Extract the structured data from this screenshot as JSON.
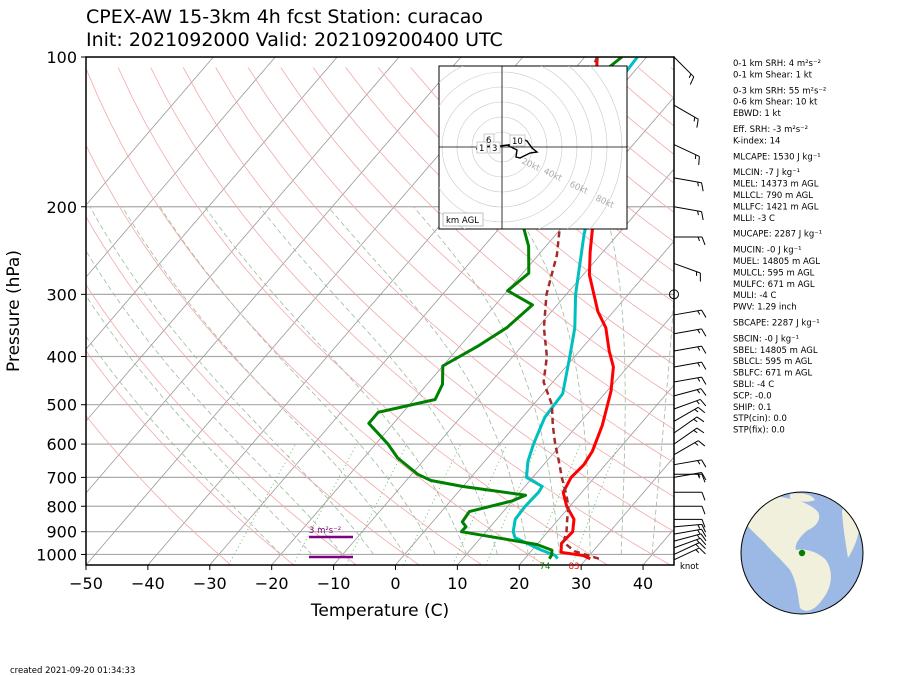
{
  "header": {
    "title_line1": "CPEX-AW 15-3km  4h fcst  Station: curacao",
    "title_line2": "Init: 2021092000  Valid: 202109200400 UTC"
  },
  "footer": {
    "created": "created 2021-09-20 01:34:33"
  },
  "chart_data": {
    "type": "skewt",
    "xlabel": "Temperature (C)",
    "ylabel": "Pressure (hPa)",
    "xlim": [
      -50,
      45
    ],
    "ylim": [
      1050,
      100
    ],
    "y_scale": "log",
    "x_ticks": [
      -50,
      -40,
      -30,
      -20,
      -10,
      0,
      10,
      20,
      30,
      40
    ],
    "y_ticks": [
      1000,
      900,
      800,
      700,
      600,
      500,
      400,
      300,
      200,
      100
    ],
    "series": [
      {
        "color": "#ff0000",
        "points": [
          [
            30.6,
            1020
          ],
          [
            29,
            1005
          ],
          [
            25,
            990
          ],
          [
            23.8,
            950
          ],
          [
            24,
            900
          ],
          [
            22.5,
            850
          ],
          [
            19.5,
            800
          ],
          [
            17,
            750
          ],
          [
            16.2,
            700
          ],
          [
            16.5,
            660
          ],
          [
            16,
            620
          ],
          [
            14,
            550
          ],
          [
            10.7,
            470
          ],
          [
            7.7,
            420
          ],
          [
            4.8,
            390
          ],
          [
            1,
            350
          ],
          [
            -2.5,
            325
          ],
          [
            -9,
            274
          ],
          [
            -12,
            247
          ],
          [
            -16.3,
            210
          ],
          [
            -20,
            182
          ],
          [
            -24.3,
            158
          ],
          [
            -29,
            135
          ],
          [
            -34,
            115
          ],
          [
            -38,
            100
          ]
        ]
      },
      {
        "color": "#00bfbf",
        "points": [
          [
            25.3,
            1020
          ],
          [
            24.5,
            1005
          ],
          [
            21.5,
            980
          ],
          [
            15.5,
            925
          ],
          [
            14.4,
            900
          ],
          [
            13,
            850
          ],
          [
            12.8,
            800
          ],
          [
            13,
            750
          ],
          [
            12.8,
            730
          ],
          [
            9,
            700
          ],
          [
            7,
            650
          ],
          [
            5.5,
            600
          ],
          [
            3.6,
            530
          ],
          [
            3.2,
            475
          ],
          [
            -0.8,
            400
          ],
          [
            -4,
            350
          ],
          [
            -8.5,
            300
          ],
          [
            -15.5,
            227
          ],
          [
            -20.3,
            182
          ],
          [
            -25,
            157
          ],
          [
            -29,
            135
          ],
          [
            -31,
            116
          ],
          [
            -31.5,
            100
          ]
        ]
      },
      {
        "color": "#008000",
        "points": [
          [
            24,
            1020
          ],
          [
            23.8,
            1000
          ],
          [
            23.2,
            980
          ],
          [
            20,
            955
          ],
          [
            6,
            900
          ],
          [
            6.1,
            880
          ],
          [
            4.8,
            860
          ],
          [
            4.5,
            820
          ],
          [
            10,
            780
          ],
          [
            11.3,
            760
          ],
          [
            0,
            730
          ],
          [
            -6,
            710
          ],
          [
            -9,
            690
          ],
          [
            -14.5,
            640
          ],
          [
            -18,
            600
          ],
          [
            -24,
            545
          ],
          [
            -24,
            518
          ],
          [
            -16.6,
            488
          ],
          [
            -17.5,
            455
          ],
          [
            -20,
            418
          ],
          [
            -17,
            380
          ],
          [
            -15,
            350
          ],
          [
            -14,
            315
          ],
          [
            -20,
            295
          ],
          [
            -19,
            272
          ],
          [
            -22.8,
            240
          ],
          [
            -30,
            200
          ],
          [
            -36,
            170
          ],
          [
            -34.6,
            155
          ],
          [
            -37.6,
            130
          ],
          [
            -34,
            100
          ]
        ]
      },
      {
        "color": "#a52a2a",
        "dash": "6,4",
        "points": [
          [
            32,
            1020
          ],
          [
            27,
            985
          ],
          [
            24,
            945
          ],
          [
            23,
            900
          ],
          [
            21.4,
            850
          ],
          [
            19.8,
            800
          ],
          [
            17.4,
            750
          ],
          [
            14.7,
            700
          ],
          [
            12,
            650
          ],
          [
            9,
            600
          ],
          [
            6,
            550
          ],
          [
            3,
            500
          ],
          [
            -1.5,
            450
          ],
          [
            -4.5,
            400
          ],
          [
            -9,
            350
          ],
          [
            -13.2,
            300
          ],
          [
            -17,
            250
          ],
          [
            -21.6,
            210
          ],
          [
            -26,
            180
          ],
          [
            -30.4,
            150
          ],
          [
            -34,
            128
          ],
          [
            -36.5,
            110
          ],
          [
            -38,
            100
          ]
        ]
      }
    ],
    "surface_labels": {
      "dewpoint": "74",
      "temperature": "83",
      "wind_unit": "knot"
    },
    "srh_layers": {
      "upper_label": "3 m²s⁻²"
    },
    "barbs": [
      {
        "p": 100,
        "spd": 15,
        "dir": 135
      },
      {
        "p": 125,
        "spd": 15,
        "dir": 120
      },
      {
        "p": 150,
        "spd": 15,
        "dir": 115
      },
      {
        "p": 175,
        "spd": 15,
        "dir": 100
      },
      {
        "p": 200,
        "spd": 15,
        "dir": 100
      },
      {
        "p": 230,
        "spd": 15,
        "dir": 90
      },
      {
        "p": 260,
        "spd": 15,
        "dir": 110
      },
      {
        "p": 300,
        "spd": 0,
        "dir": 0
      },
      {
        "p": 330,
        "spd": 15,
        "dir": 80
      },
      {
        "p": 360,
        "spd": 15,
        "dir": 80
      },
      {
        "p": 390,
        "spd": 15,
        "dir": 80
      },
      {
        "p": 420,
        "spd": 15,
        "dir": 80
      },
      {
        "p": 450,
        "spd": 15,
        "dir": 80
      },
      {
        "p": 480,
        "spd": 15,
        "dir": 75
      },
      {
        "p": 510,
        "spd": 15,
        "dir": 70
      },
      {
        "p": 540,
        "spd": 15,
        "dir": 60
      },
      {
        "p": 570,
        "spd": 15,
        "dir": 55
      },
      {
        "p": 600,
        "spd": 15,
        "dir": 55
      },
      {
        "p": 630,
        "spd": 15,
        "dir": 60
      },
      {
        "p": 660,
        "spd": 15,
        "dir": 80
      },
      {
        "p": 690,
        "spd": 15,
        "dir": 90
      },
      {
        "p": 700,
        "spd": 15,
        "dir": 80
      },
      {
        "p": 750,
        "spd": 10,
        "dir": 90
      },
      {
        "p": 800,
        "spd": 10,
        "dir": 90
      },
      {
        "p": 850,
        "spd": 10,
        "dir": 90
      },
      {
        "p": 880,
        "spd": 15,
        "dir": 85
      },
      {
        "p": 910,
        "spd": 15,
        "dir": 80
      },
      {
        "p": 940,
        "spd": 15,
        "dir": 75
      },
      {
        "p": 970,
        "spd": 15,
        "dir": 70
      },
      {
        "p": 1000,
        "spd": 15,
        "dir": 65
      },
      {
        "p": 1025,
        "spd": 15,
        "dir": 65
      }
    ],
    "hodograph": {
      "ring_labels": [
        "20kt",
        "40kt",
        "60kt",
        "80kt"
      ],
      "height_labels": [
        "6",
        "10",
        "1",
        "3"
      ],
      "legend": "km AGL"
    }
  },
  "indices": [
    "0-1 km SRH: 4 m²s⁻²",
    "0-1 km Shear: 1 kt",
    "0-3 km SRH: 55 m²s⁻²",
    "0-6 km Shear: 10 kt",
    "EBWD: 1 kt",
    "Eff. SRH: -3 m²s⁻²",
    "K-index: 14",
    "MLCAPE: 1530 J kg⁻¹",
    "MLCIN: -7 J kg⁻¹",
    "MLEL: 14373 m AGL",
    "MLLCL: 790 m AGL",
    "MLLFC: 1421 m AGL",
    "MLLI: -3 C",
    "MUCAPE: 2287 J kg⁻¹",
    "MUCIN: -0 J kg⁻¹",
    "MUEL: 14805 m AGL",
    "MULCL: 595 m AGL",
    "MULFC: 671 m AGL",
    "MULI: -4 C",
    "PWV: 1.29 inch",
    "SBCAPE: 2287 J kg⁻¹",
    "SBCIN: -0 J kg⁻¹",
    "SBEL: 14805 m AGL",
    "SBLCL: 595 m AGL",
    "SBLFC: 671 m AGL",
    "SBLI: -4 C",
    "SCP: -0.0",
    "SHIP: 0.1",
    "STP(cin): 0.0",
    "STP(fix): 0.0"
  ],
  "colors": {
    "land": "#f0f0dc",
    "ocean": "#9cb9e6",
    "station": "#008000"
  }
}
